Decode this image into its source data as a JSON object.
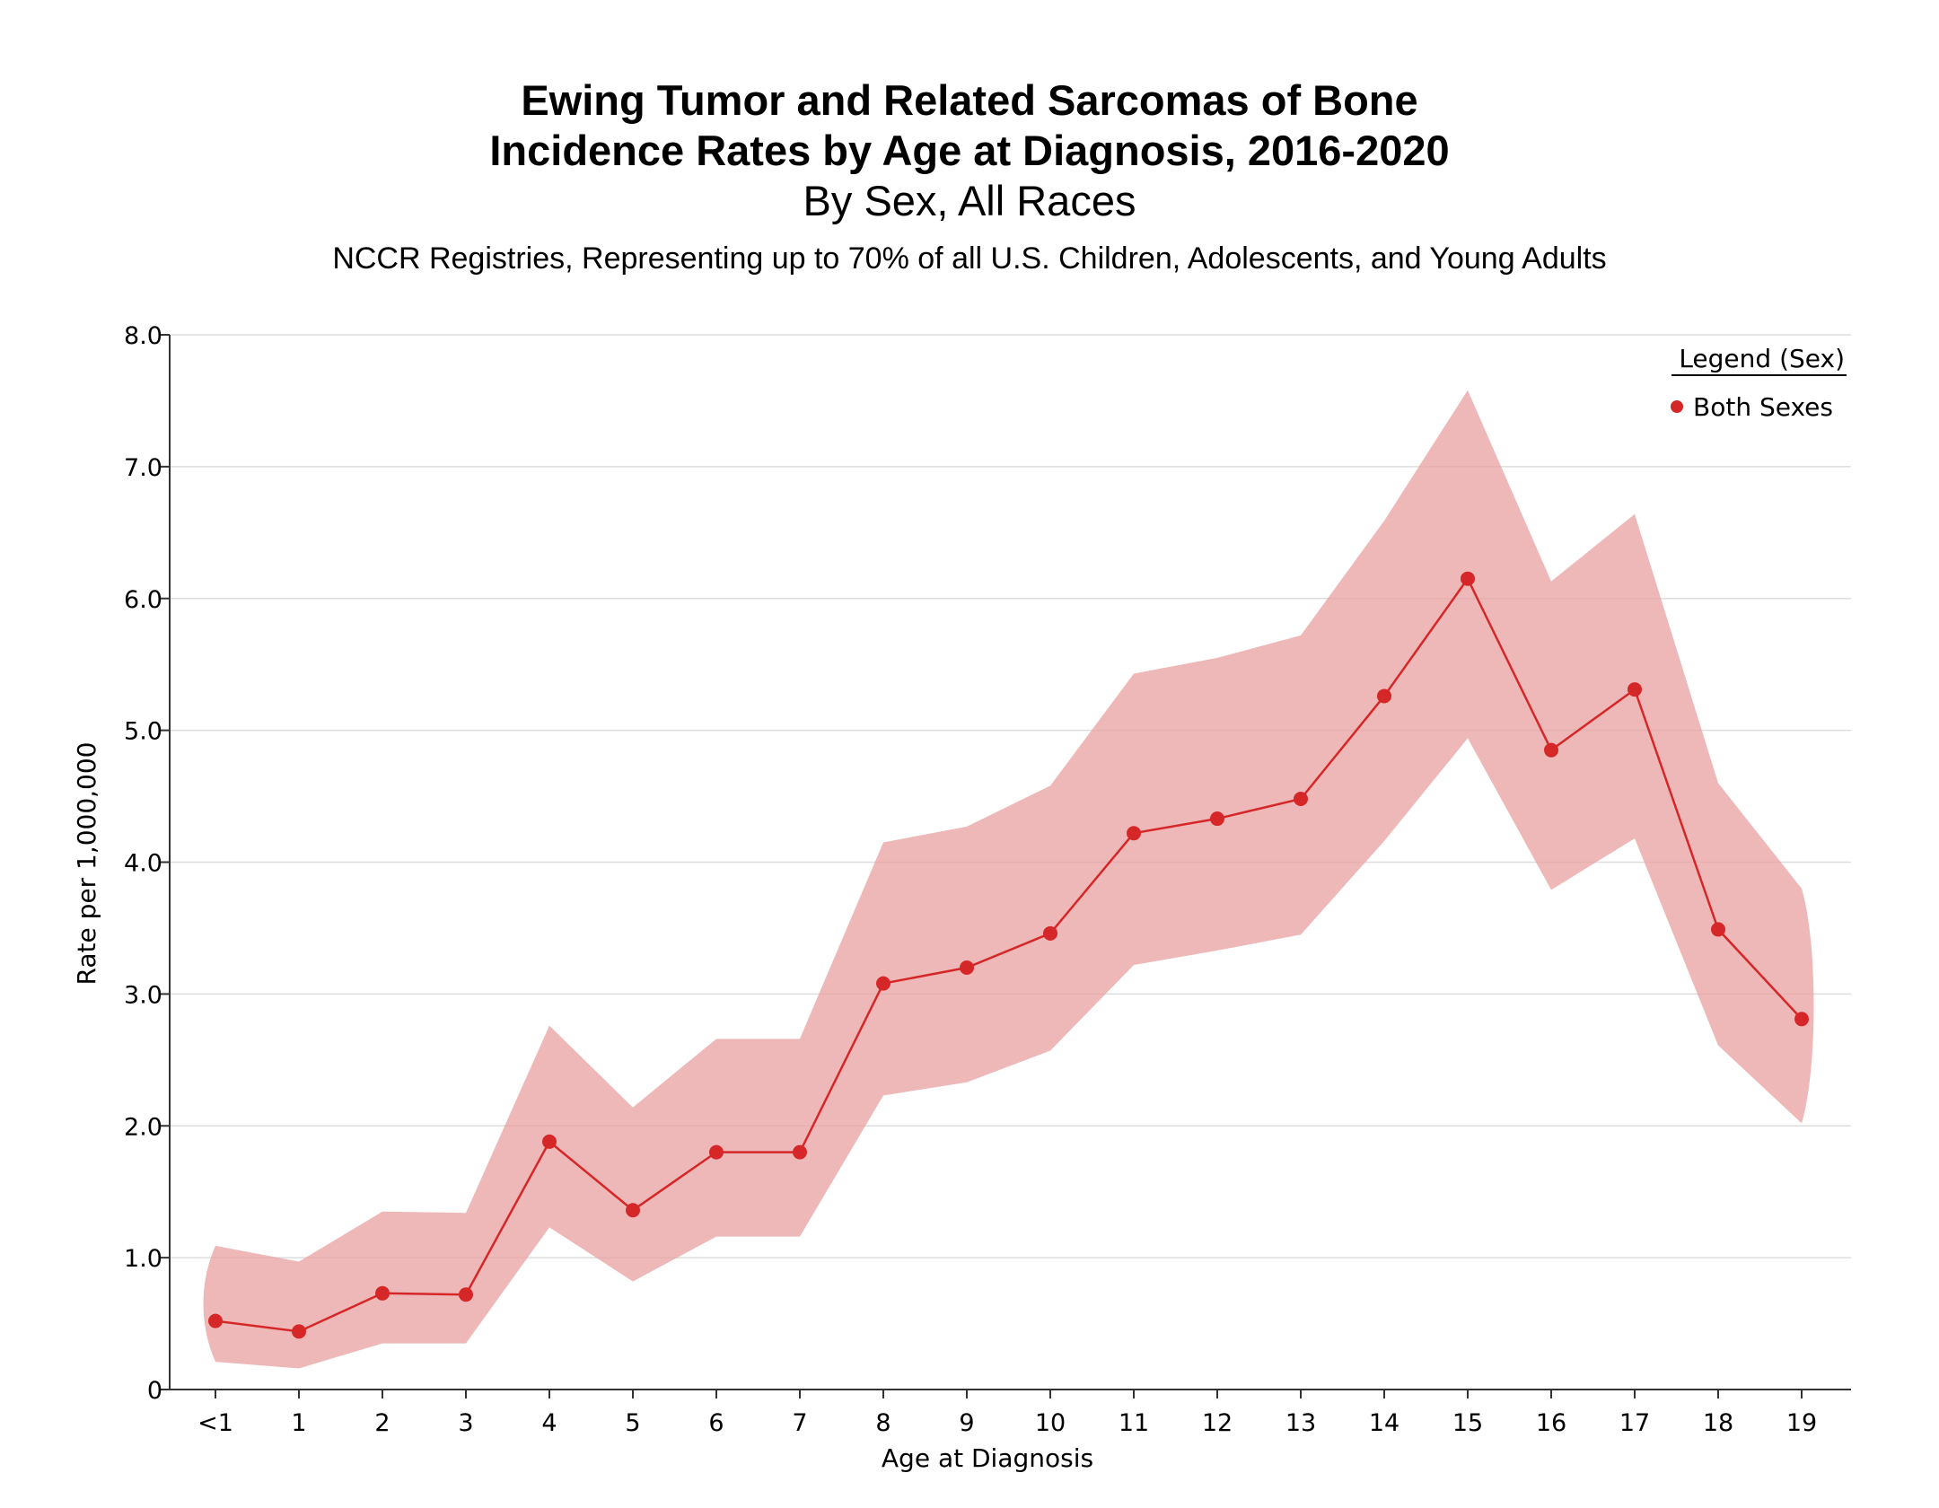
{
  "chart_data": {
    "type": "line",
    "title": "Ewing Tumor and Related Sarcomas of Bone",
    "subtitle": "Incidence Rates by Age at Diagnosis, 2016-2020",
    "subtitle2": "By Sex, All Races",
    "subtitle3": "NCCR Registries, Representing up to 70% of all U.S. Children, Adolescents, and Young Adults",
    "xlabel": "Age at Diagnosis",
    "ylabel": "Rate per 1,000,000",
    "ylim": [
      0,
      8
    ],
    "y_ticks": [
      "0",
      "1.0",
      "2.0",
      "3.0",
      "4.0",
      "5.0",
      "6.0",
      "7.0",
      "8.0"
    ],
    "grid": true,
    "legend": {
      "title": "Legend (Sex)",
      "position": "top-right"
    },
    "categories": [
      "<1",
      "1",
      "2",
      "3",
      "4",
      "5",
      "6",
      "7",
      "8",
      "9",
      "10",
      "11",
      "12",
      "13",
      "14",
      "15",
      "16",
      "17",
      "18",
      "19"
    ],
    "series": [
      {
        "name": "Both Sexes",
        "color": "#d62728",
        "band_color": "#eaa0a0",
        "values": [
          0.52,
          0.44,
          0.73,
          0.72,
          1.88,
          1.36,
          1.8,
          1.8,
          3.08,
          3.2,
          3.46,
          4.22,
          4.33,
          4.48,
          5.26,
          6.15,
          4.85,
          5.31,
          3.49,
          2.81
        ],
        "lower": [
          0.21,
          0.16,
          0.35,
          0.35,
          1.23,
          0.82,
          1.16,
          1.16,
          2.23,
          2.33,
          2.57,
          3.22,
          3.33,
          3.45,
          4.16,
          4.94,
          3.79,
          4.18,
          2.61,
          2.02
        ],
        "upper": [
          1.09,
          0.97,
          1.35,
          1.34,
          2.76,
          2.14,
          2.66,
          2.66,
          4.15,
          4.27,
          4.58,
          5.43,
          5.55,
          5.72,
          6.59,
          7.58,
          6.13,
          6.64,
          4.6,
          3.8
        ]
      }
    ]
  }
}
